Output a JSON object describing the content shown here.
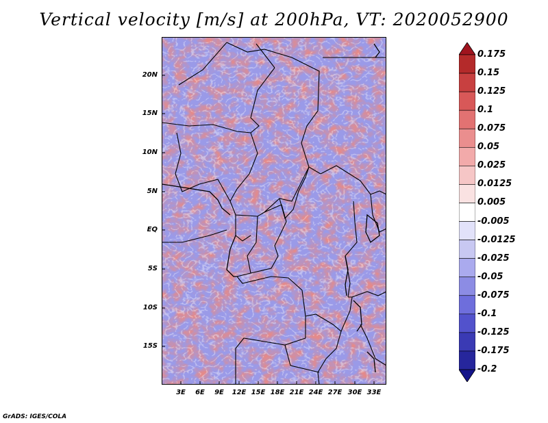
{
  "title": "Vertical velocity [m/s] at 200hPa, VT: 2020052900",
  "map": {
    "lat_labels": [
      "20N",
      "15N",
      "10N",
      "5N",
      "EQ",
      "5S",
      "10S",
      "15S"
    ],
    "lon_labels": [
      "3E",
      "6E",
      "9E",
      "12E",
      "15E",
      "18E",
      "21E",
      "24E",
      "27E",
      "30E",
      "33E"
    ],
    "field": "vertical velocity",
    "units": "m/s",
    "level": "200hPa"
  },
  "colorbar": {
    "labels": [
      "0.175",
      "0.15",
      "0.125",
      "0.1",
      "0.075",
      "0.05",
      "0.025",
      "0.0125",
      "0.005",
      "-0.005",
      "-0.0125",
      "-0.025",
      "-0.05",
      "-0.075",
      "-0.1",
      "-0.125",
      "-0.175",
      "-0.2"
    ],
    "colors": [
      "#a0141e",
      "#b42a2a",
      "#c84040",
      "#d85858",
      "#e27272",
      "#ea8e8e",
      "#f2aaaa",
      "#f6c6c6",
      "#fae2e2",
      "#ffffff",
      "#e2e2fa",
      "#c8c8f2",
      "#aaaaee",
      "#8c8ce4",
      "#6e6edc",
      "#5252cc",
      "#3a3ab4",
      "#26269c",
      "#14148a"
    ]
  },
  "credit": "GrADS: IGES/COLA"
}
